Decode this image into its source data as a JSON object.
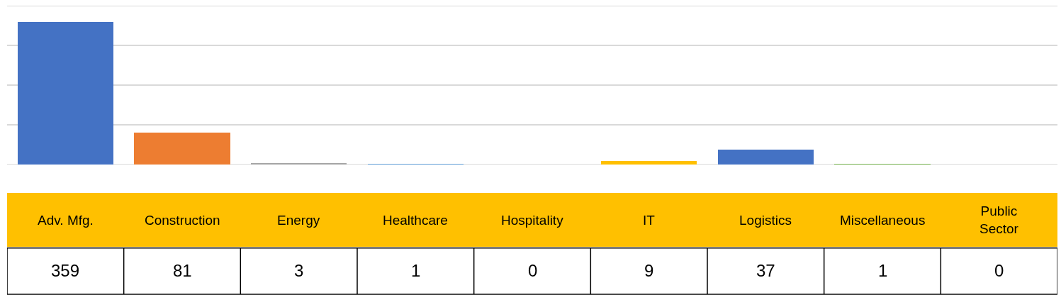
{
  "chart_data": {
    "type": "bar",
    "categories": [
      "Adv. Mfg.",
      "Construction",
      "Energy",
      "Healthcare",
      "Hospitality",
      "IT",
      "Logistics",
      "Miscellaneous",
      "Public Sector"
    ],
    "values": [
      359,
      81,
      3,
      1,
      0,
      9,
      37,
      1,
      0
    ],
    "colors": [
      "#4472c4",
      "#ed7d31",
      "#a5a5a5",
      "#5b9bd5",
      "#4472c4",
      "#ffc000",
      "#4472c4",
      "#70ad47",
      "#4472c4"
    ],
    "ylim": [
      0,
      400
    ],
    "yticks": [
      {
        "value": 0,
        "label": null
      },
      {
        "value": 100,
        "label": null
      },
      {
        "value": 200,
        "label": null
      },
      {
        "value": 300,
        "label": null
      },
      {
        "value": 400,
        "label": null
      }
    ],
    "grid": "y",
    "data_labels": true
  }
}
